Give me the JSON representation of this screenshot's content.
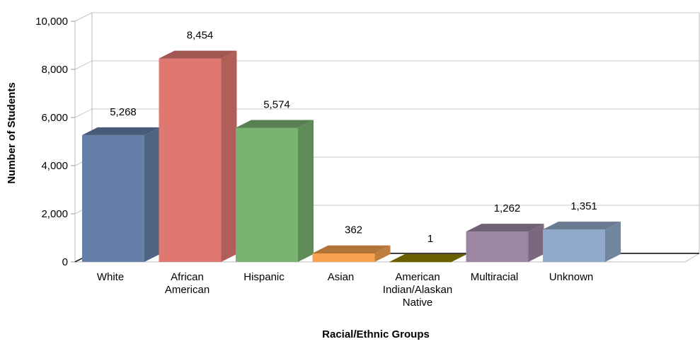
{
  "chart_data": {
    "type": "bar",
    "title": "",
    "xlabel": "Racial/Ethnic Groups",
    "ylabel": "Number of Students",
    "ylim": [
      0,
      10000
    ],
    "yticks": [
      0,
      2000,
      4000,
      6000,
      8000,
      10000
    ],
    "ytick_labels": [
      "0",
      "2,000",
      "4,000",
      "6,000",
      "8,000",
      "10,000"
    ],
    "grid": true,
    "legend": "none",
    "style": "3d-columns",
    "categories": [
      [
        "White"
      ],
      [
        "African",
        "American"
      ],
      [
        "Hispanic"
      ],
      [
        "Asian"
      ],
      [
        "American",
        "Indian/Alaskan",
        "Native"
      ],
      [
        "Multiracial"
      ],
      [
        "Unknown"
      ]
    ],
    "values": [
      5268,
      8454,
      5574,
      362,
      1,
      1262,
      1351
    ],
    "value_labels": [
      "5,268",
      "8,454",
      "5,574",
      "362",
      "1",
      "1,262",
      "1,351"
    ],
    "colors": [
      "#6480A8",
      "#E07872",
      "#7AB272",
      "#F5A14E",
      "#8F8400",
      "#9C86A2",
      "#92AACA"
    ]
  }
}
